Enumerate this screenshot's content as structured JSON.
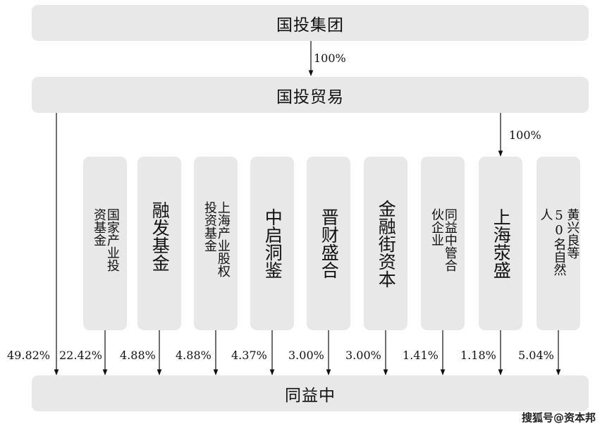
{
  "top": {
    "name": "国投集团"
  },
  "edge_top": "100%",
  "mid": {
    "name": "国投贸易"
  },
  "edge_mid_shanghai": "100%",
  "holders": [
    {
      "name": "国家产业投资基金",
      "pct": "22.42%"
    },
    {
      "name": "融发基金",
      "pct": "4.88%"
    },
    {
      "name": "上海产业股权投资基金",
      "pct": "4.88%"
    },
    {
      "name": "中启洞鉴",
      "pct": "4.37%"
    },
    {
      "name": "晋财盛合",
      "pct": "3.00%"
    },
    {
      "name": "金融街资本",
      "pct": "3.00%"
    },
    {
      "name": "同益中管合伙企业",
      "pct": "1.41%"
    },
    {
      "name": "上海荥盛",
      "pct": "1.18%"
    },
    {
      "name": "黄兴良等50名自然人",
      "pct": "5.04%"
    }
  ],
  "direct_pct": "49.82%",
  "target": {
    "name": "同益中"
  },
  "watermark": "搜狐号@资本邦"
}
